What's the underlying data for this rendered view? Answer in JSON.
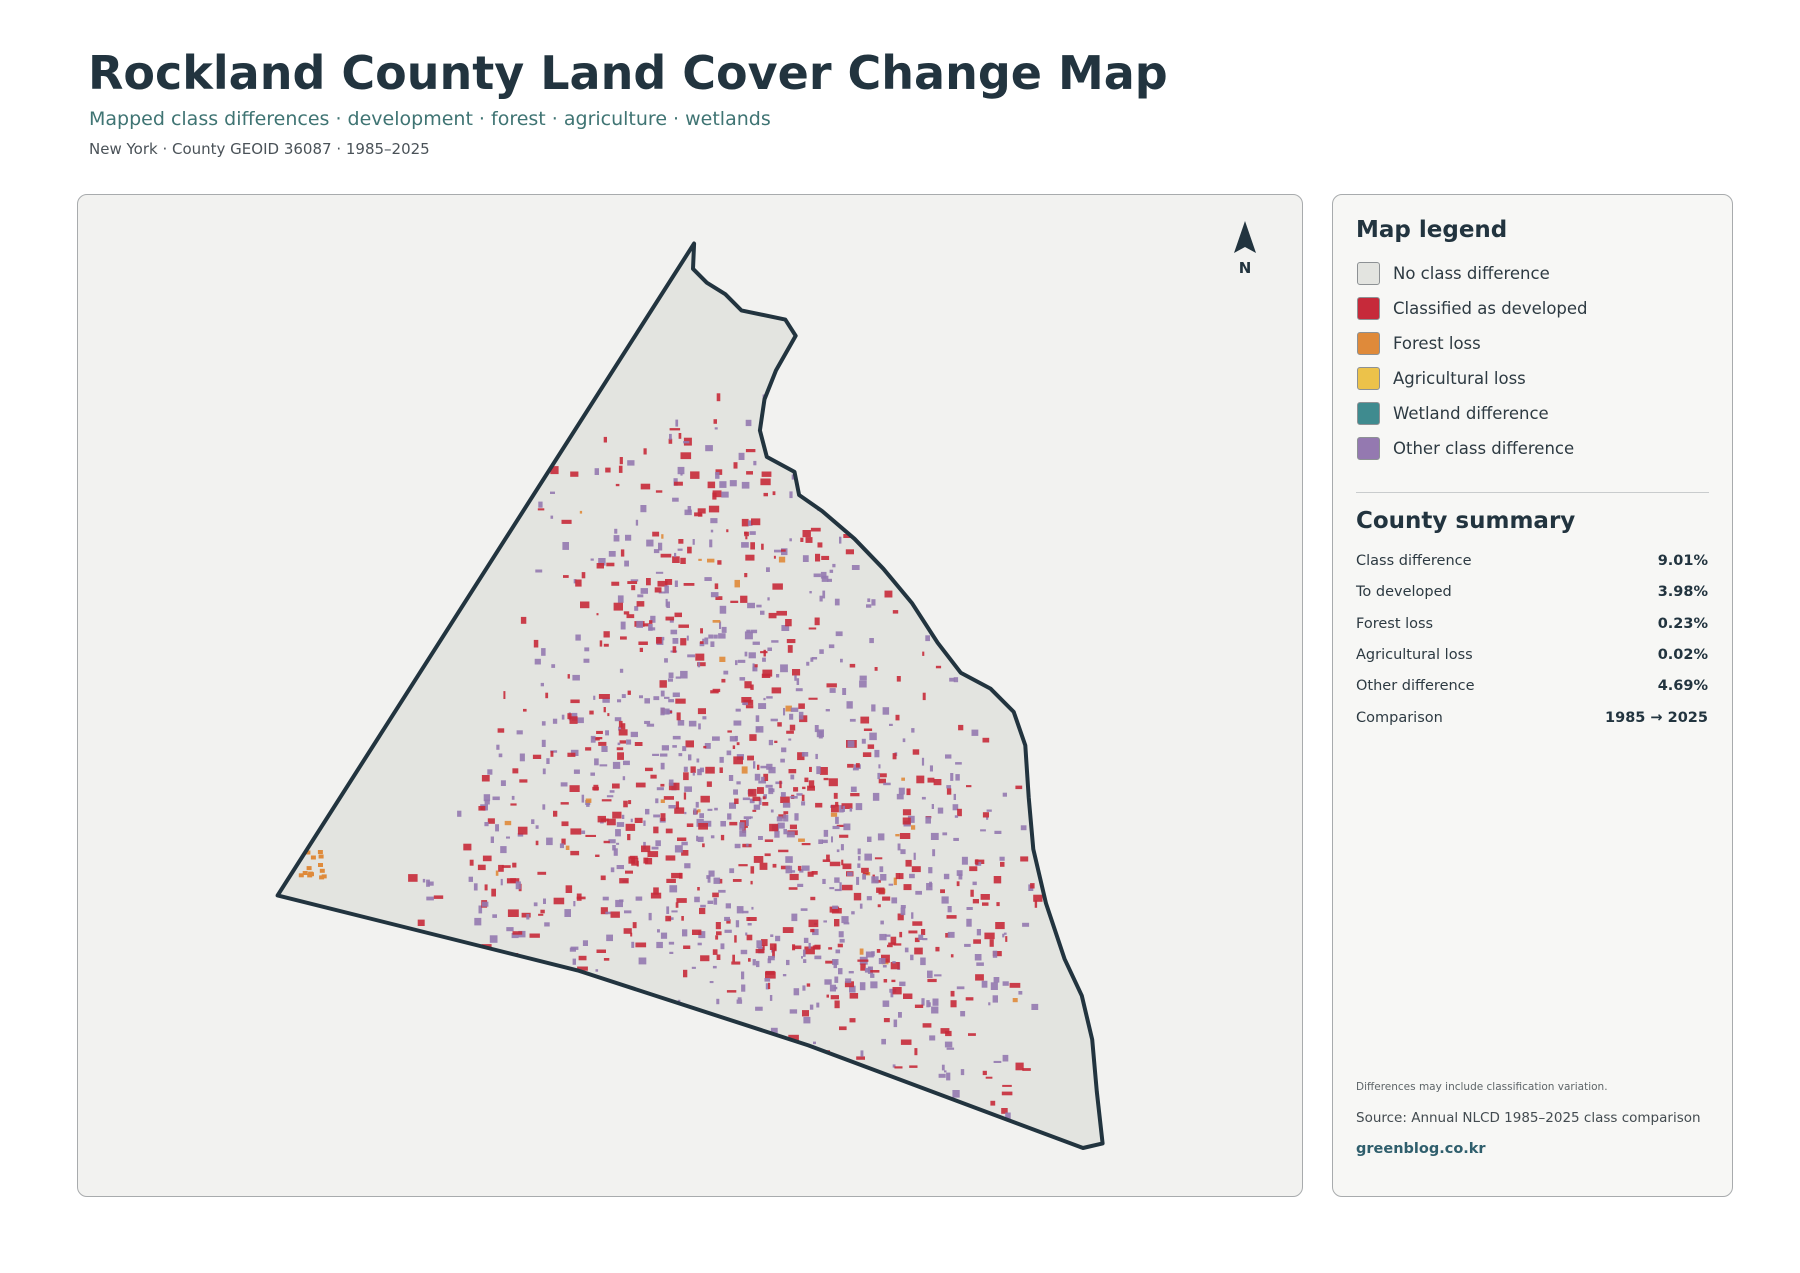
{
  "header": {
    "title": "Rockland County Land Cover Change Map",
    "subtitle": "Mapped class differences · development · forest · agriculture · wetlands",
    "meta": "New York · County GEOID 36087 · 1985–2025"
  },
  "map": {
    "north_label": "N"
  },
  "legend": {
    "title": "Map legend",
    "items": [
      {
        "label": "No class difference",
        "color": "#e3e4e0"
      },
      {
        "label": "Classified as developed",
        "color": "#c62a3a"
      },
      {
        "label": "Forest loss",
        "color": "#df8a3a"
      },
      {
        "label": "Agricultural loss",
        "color": "#ecc24a"
      },
      {
        "label": "Wetland difference",
        "color": "#3f8b8f"
      },
      {
        "label": "Other class difference",
        "color": "#9479b0"
      }
    ]
  },
  "summary": {
    "title": "County summary",
    "rows": [
      {
        "label": "Class difference",
        "value": "9.01%"
      },
      {
        "label": "To developed",
        "value": "3.98%"
      },
      {
        "label": "Forest loss",
        "value": "0.23%"
      },
      {
        "label": "Agricultural loss",
        "value": "0.02%"
      },
      {
        "label": "Other difference",
        "value": "4.69%"
      },
      {
        "label": "Comparison",
        "value": "1985 → 2025"
      }
    ]
  },
  "footer": {
    "note": "Differences may include classification variation.",
    "source": "Source: Annual NLCD 1985–2025 class comparison",
    "site": "greenblog.co.kr"
  }
}
